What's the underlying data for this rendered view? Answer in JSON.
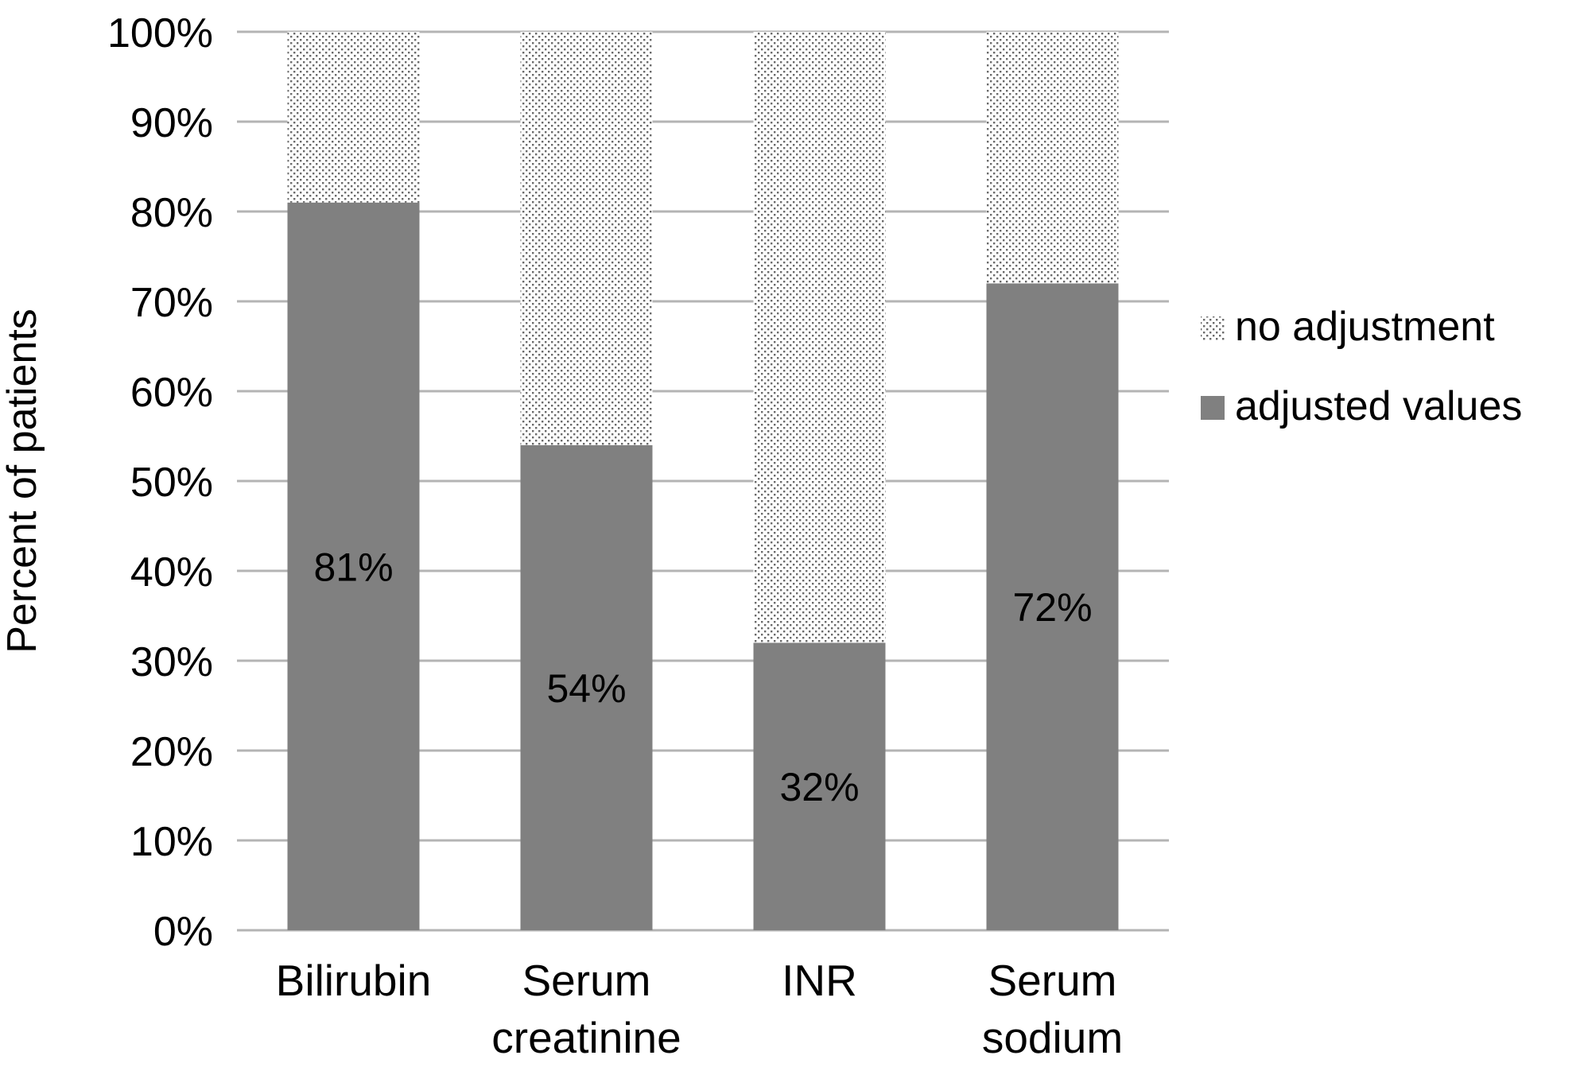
{
  "chart_data": {
    "type": "bar",
    "stacked": true,
    "title": "",
    "xlabel": "",
    "ylabel": "Percent of patients",
    "ylim": [
      0,
      100
    ],
    "y_unit": "%",
    "yticks": [
      "0%",
      "10%",
      "20%",
      "30%",
      "40%",
      "50%",
      "60%",
      "70%",
      "80%",
      "90%",
      "100%"
    ],
    "categories": [
      [
        "Bilirubin"
      ],
      [
        "Serum",
        "creatinine"
      ],
      [
        "INR"
      ],
      [
        "Serum",
        "sodium"
      ]
    ],
    "series": [
      {
        "name": "adjusted values",
        "values": [
          81,
          54,
          32,
          72
        ],
        "pattern": "solid",
        "color": "#808080"
      },
      {
        "name": "no adjustment",
        "values": [
          19,
          46,
          68,
          28
        ],
        "pattern": "dots",
        "color": "#7a7a7a"
      }
    ],
    "data_labels": [
      "81%",
      "54%",
      "32%",
      "72%"
    ],
    "legend": {
      "position": "right",
      "entries": [
        "no adjustment",
        "adjusted values"
      ]
    },
    "grid": true,
    "gridline_color": "#b4b4b4"
  }
}
